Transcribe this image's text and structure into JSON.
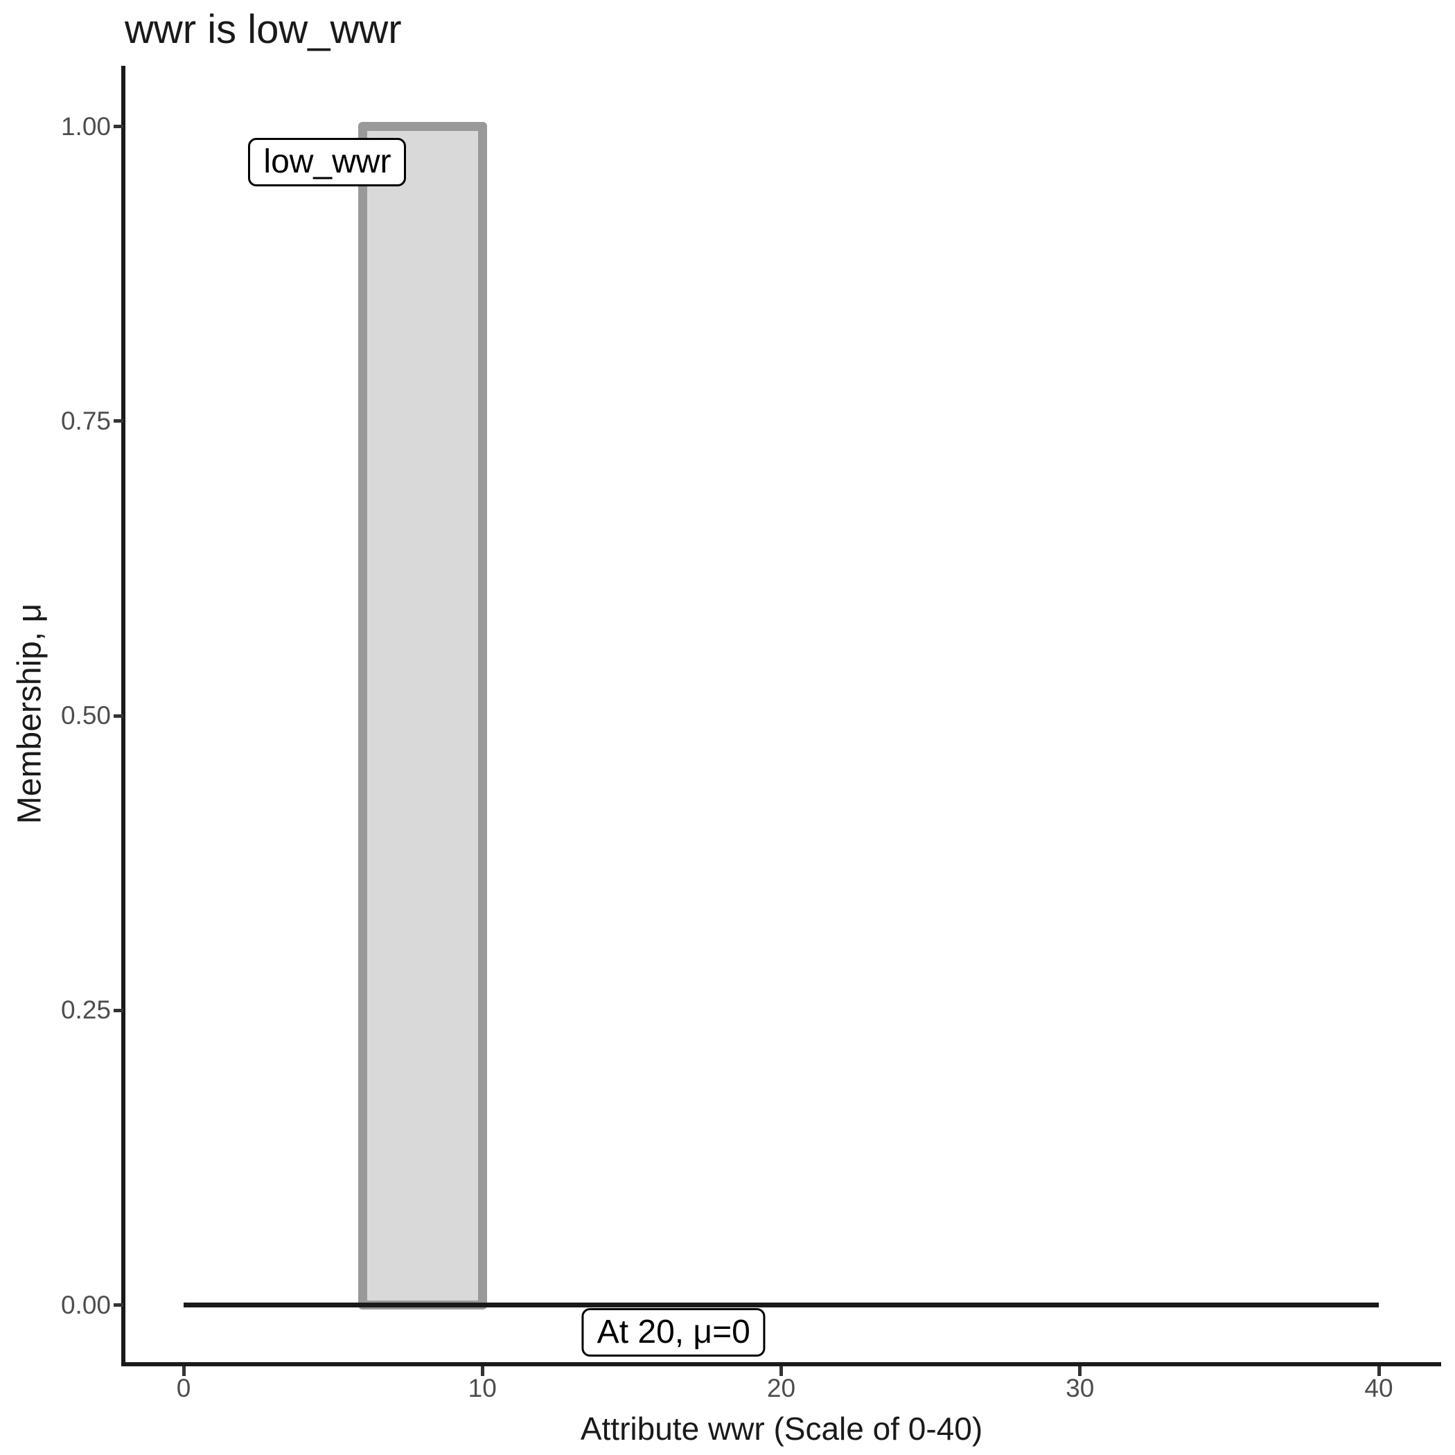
{
  "chart_data": {
    "type": "area",
    "title": "wwr is low_wwr",
    "xlabel": "Attribute wwr (Scale of 0-40)",
    "ylabel": "Membership, μ",
    "xlim": [
      0,
      40
    ],
    "ylim": [
      0,
      1
    ],
    "grid": false,
    "legend": "none",
    "x_ticks": [
      {
        "value": 0,
        "label": "0"
      },
      {
        "value": 10,
        "label": "10"
      },
      {
        "value": 20,
        "label": "20"
      },
      {
        "value": 30,
        "label": "30"
      },
      {
        "value": 40,
        "label": "40"
      }
    ],
    "y_ticks": [
      {
        "value": 0.0,
        "label": "0.00"
      },
      {
        "value": 0.25,
        "label": "0.25"
      },
      {
        "value": 0.5,
        "label": "0.50"
      },
      {
        "value": 0.75,
        "label": "0.75"
      },
      {
        "value": 1.0,
        "label": "1.00"
      }
    ],
    "series": [
      {
        "name": "low_wwr membership function",
        "points": [
          [
            0,
            0
          ],
          [
            6,
            0
          ],
          [
            6,
            1
          ],
          [
            10,
            1
          ],
          [
            10,
            0
          ],
          [
            40,
            0
          ]
        ]
      }
    ],
    "membership_rect": {
      "x_from": 6,
      "x_to": 10,
      "mu": 1
    },
    "baseline": {
      "x_from": 0,
      "x_to": 40,
      "mu": 0
    },
    "annotations": [
      {
        "id": "low-wwr",
        "text": "low_wwr",
        "x": 4.81,
        "mu": 0.97
      },
      {
        "id": "at-20",
        "text": "At 20, μ=0",
        "x": 16.4,
        "mu": -0.023
      }
    ],
    "colors": {
      "background": "#ffffff",
      "axis_line": "#1a1a1a",
      "tick_mark": "#333333",
      "tick_label": "#4d4d4d",
      "title_text": "#1a1a1a",
      "bar_fill": "#d9d9d9",
      "bar_border": "#999999",
      "baseline_line": "#1a1a1a",
      "label_bg": "#ffffff",
      "label_border": "#000000"
    }
  }
}
